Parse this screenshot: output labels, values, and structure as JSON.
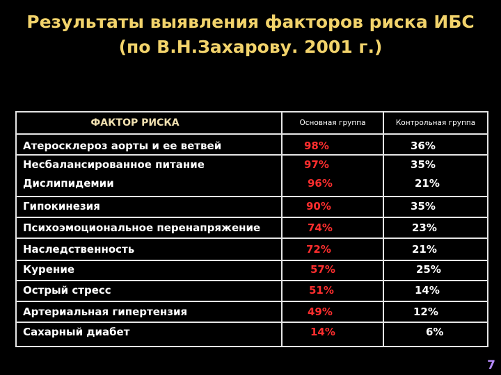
{
  "slide": {
    "title_line1": "Результаты выявления факторов риска ИБС",
    "title_line2": "(по В.Н.Захарову. 2001 г.)",
    "page_number": "7"
  },
  "table": {
    "header": {
      "factor": "ФАКТОР РИСКА",
      "main_group": "Основная группа",
      "control_group": "Контрольная группа"
    },
    "rows": [
      {
        "factor": "Атеросклероз аорты и ее ветвей",
        "main": "98%",
        "control": "36%"
      },
      {
        "factor": "Несбалансированное питание",
        "main": "97%",
        "control": "35%"
      },
      {
        "factor": "Дислипидемии",
        "main": "96%",
        "control": "21%"
      },
      {
        "factor": "Гипокинезия",
        "main": "90%",
        "control": "35%"
      },
      {
        "factor": "Психоэмоциональное перенапряжение",
        "main": "74%",
        "control": "23%"
      },
      {
        "factor": "Наследственность",
        "main": "72%",
        "control": "21%"
      },
      {
        "factor": "Курение",
        "main": "57%",
        "control": "25%"
      },
      {
        "factor": "Острый стресс",
        "main": "51%",
        "control": "14%"
      },
      {
        "factor": "Артериальная гипертензия",
        "main": "49%",
        "control": "12%"
      },
      {
        "factor": "Сахарный диабет",
        "main": "14%",
        "control": "6%"
      }
    ]
  }
}
